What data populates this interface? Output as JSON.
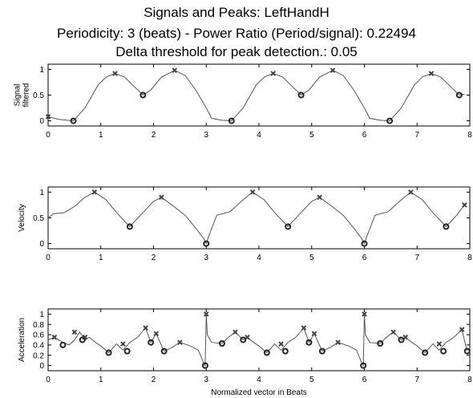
{
  "title_lines": [
    "Signals and Peaks: LeftHandH",
    "Periodicity: 3 (beats) - Power Ratio (Period/signal): 0.22494",
    "Delta threshold for peak detection.: 0.05"
  ],
  "colors": {
    "line": "#555555",
    "marker": "#444444",
    "axis": "#000000"
  },
  "chart_data": [
    {
      "type": "line",
      "ylabel": "Signal filtered",
      "ylabel_lines": [
        "Signal",
        "filtered"
      ],
      "xlim": [
        0,
        8
      ],
      "ylim": [
        -0.1,
        1.1
      ],
      "xticks": [
        0,
        1,
        2,
        3,
        4,
        5,
        6,
        7,
        8
      ],
      "yticks": [
        0,
        0.5,
        1
      ],
      "xlabel": "",
      "x": [
        0,
        0.2,
        0.48,
        0.7,
        0.95,
        1.1,
        1.27,
        1.45,
        1.6,
        1.8,
        1.95,
        2.15,
        2.4,
        2.6,
        2.8,
        3.0,
        3.1,
        3.3,
        3.48,
        3.7,
        3.95,
        4.1,
        4.27,
        4.45,
        4.6,
        4.8,
        4.95,
        5.15,
        5.4,
        5.6,
        5.8,
        6.0,
        6.1,
        6.3,
        6.48,
        6.7,
        6.95,
        7.1,
        7.27,
        7.45,
        7.6,
        7.8,
        7.9
      ],
      "y": [
        0.08,
        0.03,
        0.0,
        0.25,
        0.7,
        0.85,
        0.92,
        0.85,
        0.7,
        0.5,
        0.6,
        0.85,
        0.98,
        0.88,
        0.6,
        0.25,
        0.05,
        0.01,
        0.0,
        0.25,
        0.7,
        0.85,
        0.92,
        0.85,
        0.7,
        0.5,
        0.6,
        0.85,
        0.98,
        0.88,
        0.6,
        0.25,
        0.05,
        0.01,
        0.0,
        0.25,
        0.7,
        0.85,
        0.92,
        0.85,
        0.7,
        0.5,
        0.52
      ],
      "peaks": [
        [
          0,
          0.08
        ],
        [
          1.27,
          0.92
        ],
        [
          2.4,
          0.98
        ],
        [
          4.27,
          0.92
        ],
        [
          5.4,
          0.98
        ],
        [
          7.27,
          0.92
        ]
      ],
      "troughs": [
        [
          0.48,
          0.0
        ],
        [
          1.8,
          0.5
        ],
        [
          3.48,
          0.0
        ],
        [
          4.8,
          0.5
        ],
        [
          6.48,
          0.0
        ],
        [
          7.8,
          0.5
        ]
      ]
    },
    {
      "type": "line",
      "ylabel": "Velocity",
      "ylabel_lines": [
        "Velocity"
      ],
      "xlim": [
        0,
        8
      ],
      "ylim": [
        -0.1,
        1.1
      ],
      "xticks": [
        0,
        1,
        2,
        3,
        4,
        5,
        6,
        7,
        8
      ],
      "yticks": [
        0,
        0.5,
        1
      ],
      "xlabel": "",
      "x": [
        0,
        0.1,
        0.3,
        0.5,
        0.7,
        0.88,
        1.1,
        1.3,
        1.55,
        1.75,
        2.0,
        2.15,
        2.35,
        2.6,
        2.8,
        2.95,
        3.0,
        3.05,
        3.2,
        3.45,
        3.7,
        3.88,
        4.1,
        4.3,
        4.55,
        4.75,
        5.0,
        5.15,
        5.35,
        5.6,
        5.8,
        5.95,
        6.0,
        6.05,
        6.2,
        6.45,
        6.7,
        6.88,
        7.1,
        7.3,
        7.55,
        7.75,
        7.9
      ],
      "y": [
        0.5,
        0.58,
        0.6,
        0.72,
        0.9,
        1.0,
        0.85,
        0.6,
        0.33,
        0.55,
        0.82,
        0.9,
        0.75,
        0.55,
        0.3,
        0.1,
        0.0,
        0.15,
        0.55,
        0.62,
        0.85,
        1.0,
        0.85,
        0.6,
        0.33,
        0.55,
        0.82,
        0.9,
        0.75,
        0.55,
        0.3,
        0.1,
        0.0,
        0.15,
        0.55,
        0.62,
        0.85,
        1.0,
        0.85,
        0.6,
        0.33,
        0.55,
        0.75
      ],
      "peaks": [
        [
          0.88,
          1.0
        ],
        [
          2.15,
          0.9
        ],
        [
          3.88,
          1.0
        ],
        [
          5.15,
          0.9
        ],
        [
          6.88,
          1.0
        ],
        [
          7.9,
          0.75
        ]
      ],
      "troughs": [
        [
          1.55,
          0.33
        ],
        [
          3.0,
          0.0
        ],
        [
          4.55,
          0.33
        ],
        [
          6.0,
          0.0
        ],
        [
          7.55,
          0.33
        ]
      ]
    },
    {
      "type": "line",
      "ylabel": "Acceleration",
      "ylabel_lines": [
        "Acceleration"
      ],
      "xlim": [
        0,
        8
      ],
      "ylim": [
        -0.1,
        1.1
      ],
      "xticks": [
        0,
        1,
        2,
        3,
        4,
        5,
        6,
        7,
        8
      ],
      "yticks": [
        0,
        0.2,
        0.4,
        0.6,
        0.8,
        1
      ],
      "xlabel": "Normalized vector in Beats",
      "x": [
        0,
        0.12,
        0.28,
        0.4,
        0.5,
        0.6,
        0.7,
        0.78,
        0.9,
        1.0,
        1.15,
        1.3,
        1.42,
        1.55,
        1.7,
        1.85,
        1.95,
        2.05,
        2.2,
        2.35,
        2.5,
        2.7,
        2.85,
        2.95,
        2.98,
        3.0,
        3.02,
        3.1,
        3.3,
        3.42,
        3.55,
        3.7,
        3.78,
        3.9,
        4.0,
        4.15,
        4.3,
        4.42,
        4.55,
        4.7,
        4.85,
        4.95,
        5.05,
        5.2,
        5.35,
        5.5,
        5.7,
        5.85,
        5.95,
        5.98,
        6.0,
        6.02,
        6.1,
        6.3,
        6.42,
        6.55,
        6.7,
        6.78,
        6.9,
        7.0,
        7.15,
        7.3,
        7.42,
        7.55,
        7.7,
        7.85,
        7.95
      ],
      "y": [
        0.5,
        0.55,
        0.45,
        0.4,
        0.5,
        0.65,
        0.5,
        0.55,
        0.45,
        0.38,
        0.25,
        0.42,
        0.3,
        0.45,
        0.55,
        0.73,
        0.45,
        0.62,
        0.28,
        0.35,
        0.45,
        0.38,
        0.3,
        0.05,
        0.0,
        1.0,
        0.6,
        0.45,
        0.43,
        0.55,
        0.65,
        0.5,
        0.55,
        0.45,
        0.38,
        0.25,
        0.42,
        0.3,
        0.45,
        0.55,
        0.73,
        0.45,
        0.62,
        0.28,
        0.35,
        0.45,
        0.38,
        0.3,
        0.05,
        0.0,
        1.0,
        0.6,
        0.45,
        0.43,
        0.55,
        0.65,
        0.5,
        0.55,
        0.45,
        0.38,
        0.25,
        0.42,
        0.3,
        0.45,
        0.55,
        0.7,
        0.28
      ],
      "peaks": [
        [
          0.12,
          0.55
        ],
        [
          0.5,
          0.65
        ],
        [
          0.7,
          0.55
        ],
        [
          1.42,
          0.42
        ],
        [
          1.85,
          0.73
        ],
        [
          2.05,
          0.62
        ],
        [
          2.5,
          0.45
        ],
        [
          3.0,
          1.0
        ],
        [
          3.55,
          0.65
        ],
        [
          3.78,
          0.55
        ],
        [
          4.42,
          0.42
        ],
        [
          4.85,
          0.73
        ],
        [
          5.05,
          0.62
        ],
        [
          5.5,
          0.45
        ],
        [
          6.0,
          1.0
        ],
        [
          6.55,
          0.65
        ],
        [
          6.78,
          0.55
        ],
        [
          7.42,
          0.42
        ],
        [
          7.85,
          0.7
        ]
      ],
      "troughs": [
        [
          0.28,
          0.4
        ],
        [
          0.65,
          0.5
        ],
        [
          1.15,
          0.25
        ],
        [
          1.5,
          0.28
        ],
        [
          1.95,
          0.45
        ],
        [
          2.2,
          0.28
        ],
        [
          2.98,
          0.0
        ],
        [
          3.3,
          0.43
        ],
        [
          3.7,
          0.5
        ],
        [
          4.15,
          0.25
        ],
        [
          4.5,
          0.28
        ],
        [
          4.95,
          0.45
        ],
        [
          5.2,
          0.28
        ],
        [
          5.98,
          0.0
        ],
        [
          6.3,
          0.43
        ],
        [
          6.7,
          0.5
        ],
        [
          7.15,
          0.25
        ],
        [
          7.5,
          0.28
        ],
        [
          7.95,
          0.28
        ]
      ]
    }
  ]
}
